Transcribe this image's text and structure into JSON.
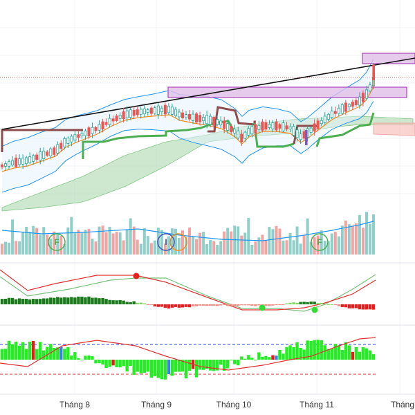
{
  "chart_data": {
    "type": "candlestick",
    "panels": [
      "price",
      "volume",
      "macd",
      "histogram-oscillator"
    ],
    "x_axis": {
      "month_labels": [
        "Tháng 8",
        "Tháng 9",
        "Tháng 10",
        "Tháng 11",
        "Tháng"
      ],
      "grid": true
    },
    "price": {
      "up_color": "#26a69a",
      "down_color": "#ef5350",
      "overlays": [
        "bollinger-bands",
        "ichimoku-cloud",
        "ema",
        "supertrend"
      ],
      "trendline": "up",
      "supply_zones": 2
    },
    "volume": {
      "up_color": "#8fcfc9",
      "down_color": "#f4a3a3",
      "moving_average": true,
      "event_markers": [
        "F",
        "I",
        "F"
      ]
    },
    "macd": {
      "line_colors": [
        "#e0302e",
        "#76c17a"
      ],
      "histogram": true,
      "signal_dots": [
        "#e81e1e",
        "#33dd33",
        "#33dd33"
      ]
    },
    "oscillator": {
      "bar_color": "#22ee22",
      "signal_color": "#e0302e",
      "levels": [
        "upper-dashed-blue",
        "lower-dashed-red"
      ]
    }
  },
  "colors": {
    "bb": "#2196f3",
    "ema": "#f08c1e",
    "st_up": "#4caf50",
    "st_down": "#8d4b4b",
    "cloud_green": "#a5d6a7",
    "cloud_red": "#f5b7b1",
    "zone": "#e1bee7",
    "zone_border": "#9c27b0"
  }
}
